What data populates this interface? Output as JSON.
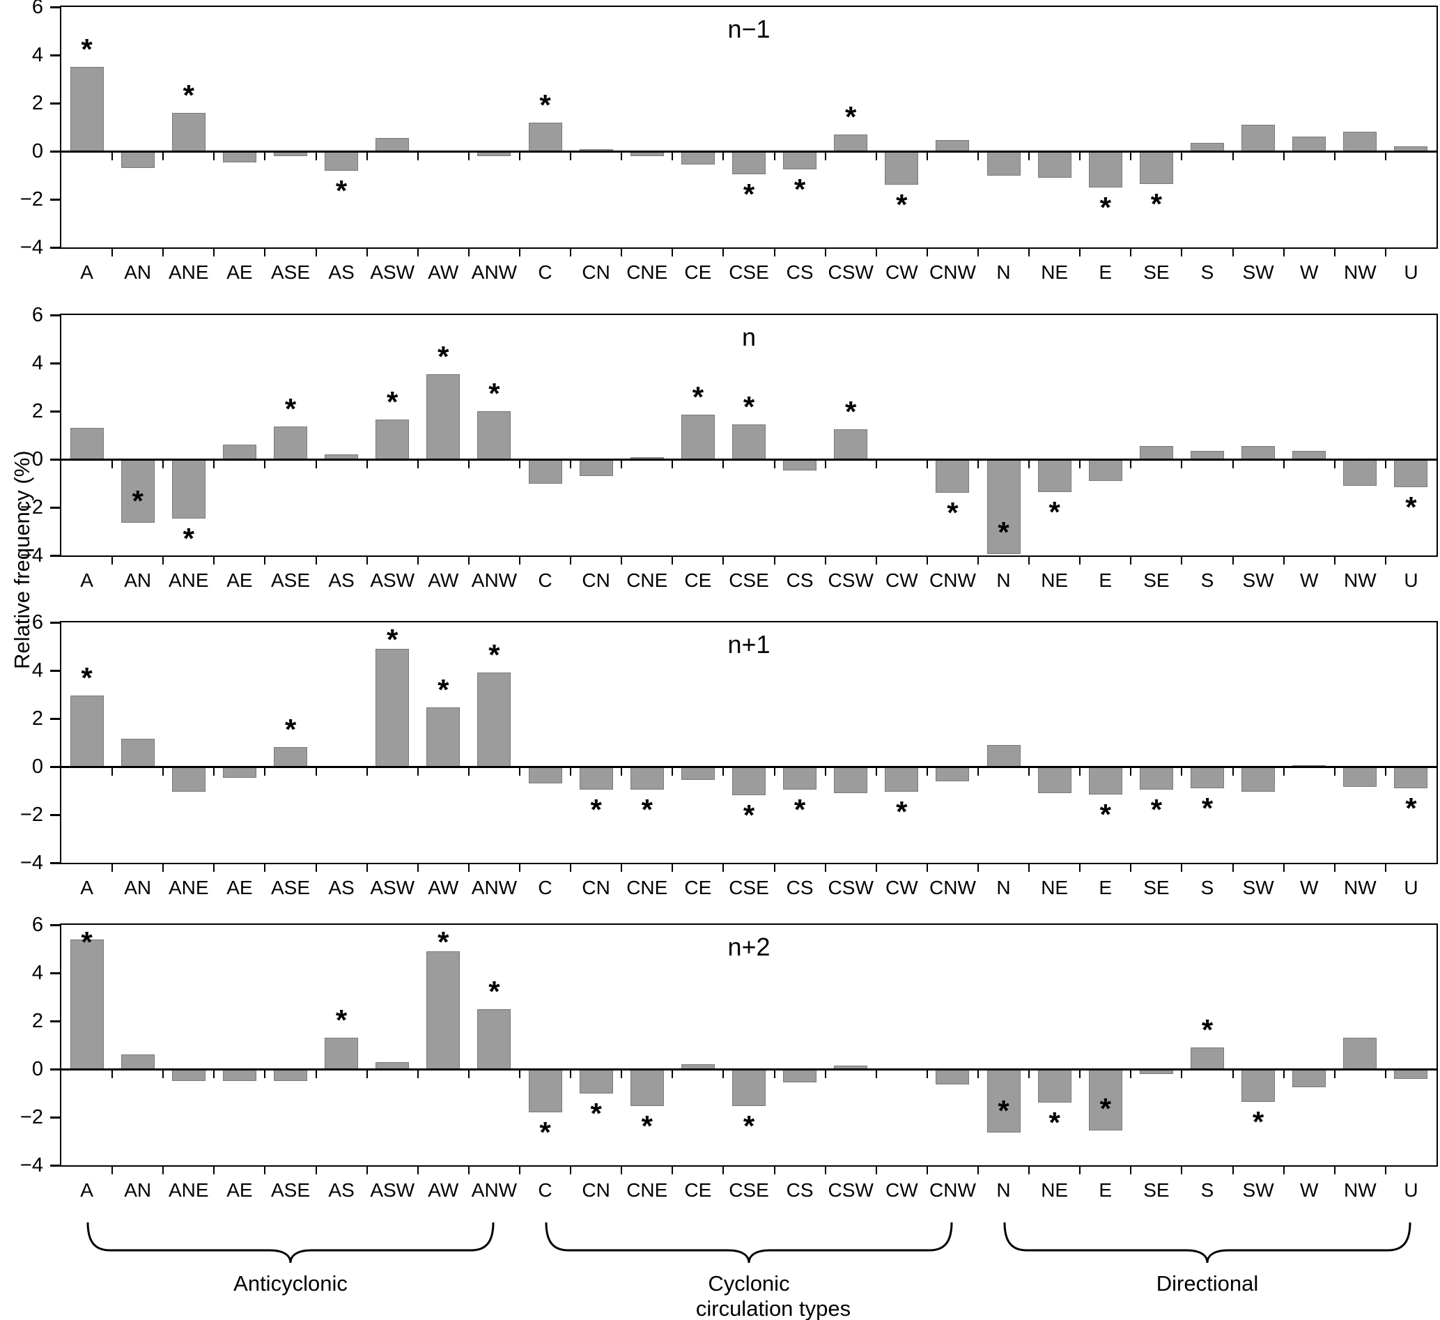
{
  "chart_data": {
    "type": "bar",
    "ylabel": "Relative frequency (%)",
    "xlabel": "circulation types",
    "ylim": [
      -4,
      6
    ],
    "yticks": [
      "6",
      "4",
      "2",
      "0",
      "−2",
      "−4"
    ],
    "ytick_values": [
      6,
      4,
      2,
      0,
      -2,
      -4
    ],
    "bar_color": "#9c9c9c",
    "categories": [
      "A",
      "AN",
      "ANE",
      "AE",
      "ASE",
      "AS",
      "ASW",
      "AW",
      "ANW",
      "C",
      "CN",
      "CNE",
      "CE",
      "CSE",
      "CS",
      "CSW",
      "CW",
      "CNW",
      "N",
      "NE",
      "E",
      "SE",
      "S",
      "SW",
      "W",
      "NW",
      "U"
    ],
    "panels": [
      {
        "title": "n−1",
        "values": [
          3.5,
          -0.7,
          1.6,
          -0.45,
          -0.2,
          -0.8,
          0.55,
          0,
          -0.2,
          1.2,
          0.1,
          -0.2,
          -0.55,
          -0.95,
          -0.75,
          0.7,
          -1.4,
          0.45,
          -1.0,
          -1.1,
          -1.5,
          -1.35,
          0.35,
          1.1,
          0.6,
          0.8,
          0.2
        ],
        "stars": [
          "A",
          "ANE",
          "AS",
          "C",
          "CSE",
          "CS",
          "CSW",
          "CW",
          "E",
          "SE"
        ]
      },
      {
        "title": "n",
        "values": [
          1.3,
          -2.65,
          -2.45,
          0.6,
          1.35,
          0.2,
          1.65,
          3.55,
          2.0,
          -1.0,
          -0.7,
          0.1,
          1.85,
          1.45,
          -0.45,
          1.25,
          0,
          -1.4,
          -3.95,
          -1.35,
          -0.9,
          0.55,
          0.35,
          0.55,
          0.35,
          -1.1,
          -1.15
        ],
        "stars": [
          "AN",
          "ANE",
          "ASE",
          "ASW",
          "AW",
          "ANW",
          "CE",
          "CSE",
          "CSW",
          "CNW",
          "N",
          "NE",
          "U"
        ]
      },
      {
        "title": "n+1",
        "values": [
          2.95,
          1.15,
          -1.05,
          -0.45,
          0.8,
          -0.05,
          4.9,
          2.45,
          3.9,
          -0.7,
          -0.95,
          -0.95,
          -0.55,
          -1.2,
          -0.95,
          -1.1,
          -1.05,
          -0.6,
          0.9,
          -1.1,
          -1.15,
          -0.95,
          -0.9,
          -1.05,
          0.05,
          -0.85,
          -0.9
        ],
        "stars": [
          "A",
          "ASE",
          "ASW",
          "AW",
          "ANW",
          "CN",
          "CNE",
          "CSE",
          "CS",
          "CW",
          "E",
          "SE",
          "S",
          "U"
        ]
      },
      {
        "title": "n+2",
        "values": [
          5.4,
          0.6,
          -0.5,
          -0.5,
          -0.5,
          1.3,
          0.3,
          4.9,
          2.5,
          -1.8,
          -1.0,
          -1.55,
          0.2,
          -1.55,
          -0.55,
          0.15,
          0,
          -0.65,
          -2.65,
          -1.4,
          -2.55,
          -0.2,
          0.9,
          -1.35,
          -0.75,
          1.3,
          -0.4
        ],
        "stars": [
          "A",
          "AS",
          "AW",
          "ANW",
          "C",
          "CN",
          "CNE",
          "CSE",
          "N",
          "NE",
          "E",
          "S",
          "SW"
        ]
      }
    ],
    "groups": [
      {
        "label": "Anticyclonic",
        "from": "A",
        "to": "ANW"
      },
      {
        "label": "Cyclonic",
        "from": "C",
        "to": "CNW"
      },
      {
        "label": "Directional",
        "from": "N",
        "to": "U"
      }
    ],
    "significance_marker": "*"
  }
}
